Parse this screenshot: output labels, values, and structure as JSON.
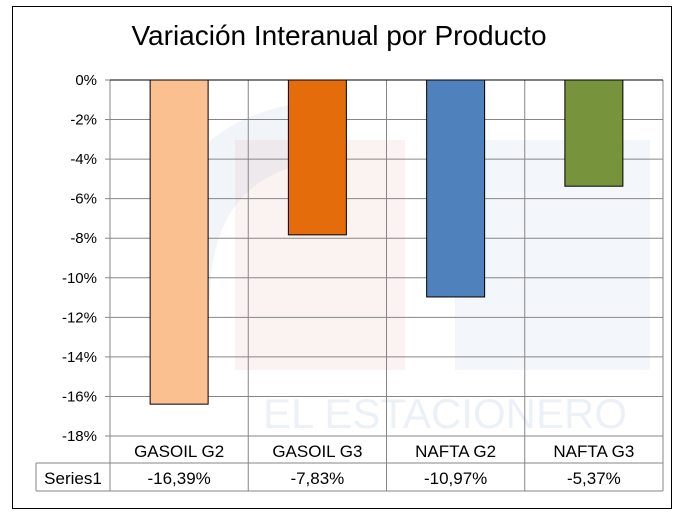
{
  "chart_data": {
    "type": "bar",
    "title": "Variación Interanual por Producto",
    "categories": [
      "GASOIL G2",
      "GASOIL G3",
      "NAFTA G2",
      "NAFTA G3"
    ],
    "series": [
      {
        "name": "Series1",
        "values": [
          -16.39,
          -7.83,
          -10.97,
          -5.37
        ]
      }
    ],
    "value_labels": [
      "-16,39%",
      "-7,83%",
      "-10,97%",
      "-5,37%"
    ],
    "bar_colors": [
      "#FAC090",
      "#E46C0A",
      "#4F81BD",
      "#77933C"
    ],
    "ylim": [
      -18,
      0
    ],
    "yticks": [
      0,
      -2,
      -4,
      -6,
      -8,
      -10,
      -12,
      -14,
      -16,
      -18
    ],
    "ytick_labels": [
      "0%",
      "-2%",
      "-4%",
      "-6%",
      "-8%",
      "-10%",
      "-12%",
      "-14%",
      "-16%",
      "-18%"
    ],
    "grid": true,
    "legend": "data-table",
    "xlabel": "",
    "ylabel": ""
  },
  "watermark": {
    "text": "EL ESTACIONERO"
  }
}
